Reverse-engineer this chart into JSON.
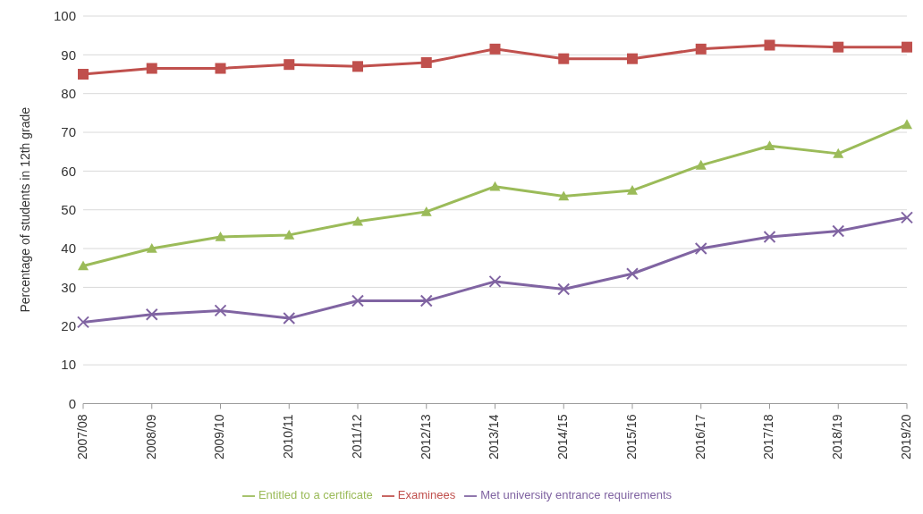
{
  "chart_data": {
    "type": "line",
    "ylabel": "Percentage of students in 12th grade",
    "categories": [
      "2007/08",
      "2008/09",
      "2009/10",
      "2010/11",
      "2011/12",
      "2012/13",
      "2013/14",
      "2014/15",
      "2015/16",
      "2016/17",
      "2017/18",
      "2018/19",
      "2019/20"
    ],
    "series": [
      {
        "name": "Examinees",
        "color": "#c0504d",
        "marker": "square",
        "values": [
          85,
          86.5,
          86.5,
          87.5,
          87,
          88,
          91.5,
          89,
          89,
          91.5,
          92.5,
          92,
          92
        ]
      },
      {
        "name": "Entitled to a certificate",
        "color": "#9bbb59",
        "marker": "triangle",
        "values": [
          35.5,
          40,
          43,
          43.5,
          47,
          49.5,
          56,
          53.5,
          55,
          61.5,
          66.5,
          64.5,
          72
        ]
      },
      {
        "name": "Met university entrance requirements",
        "color": "#8064a2",
        "marker": "cross",
        "values": [
          21,
          23,
          24,
          22,
          26.5,
          26.5,
          31.5,
          29.5,
          33.5,
          40,
          43,
          44.5,
          48
        ]
      }
    ],
    "ylim": [
      0,
      100
    ],
    "yticks": [
      0,
      10,
      20,
      30,
      40,
      50,
      60,
      70,
      80,
      90,
      100
    ],
    "grid": "y",
    "legend": "bottom",
    "line_style": "solid"
  }
}
